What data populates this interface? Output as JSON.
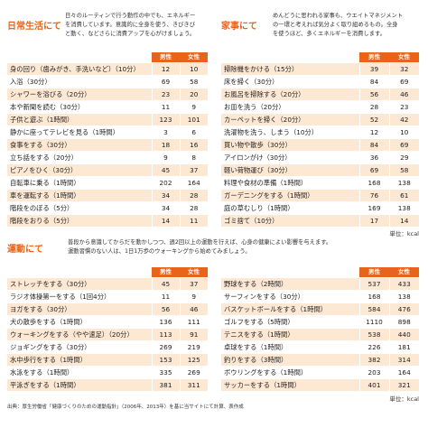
{
  "daily": {
    "title": "日常生活にて",
    "desc": [
      "日々のルーティンで行う動作の中でも、エネルギー",
      "を消費しています。意識的に全身を使う、きびきび",
      "と動く、などさらに消費アップを心がけましょう。"
    ],
    "headers": [
      "男性",
      "女性"
    ],
    "rows": [
      {
        "a": "身の回り（歯みがき、手洗いなど）（10分）",
        "m": "12",
        "f": "10"
      },
      {
        "a": "入浴（30分）",
        "m": "69",
        "f": "58"
      },
      {
        "a": "シャワーを浴びる（20分）",
        "m": "23",
        "f": "20"
      },
      {
        "a": "本や新聞を読む（30分）",
        "m": "11",
        "f": "9"
      },
      {
        "a": "子供と遊ぶ（1時間）",
        "m": "123",
        "f": "101"
      },
      {
        "a": "静かに座ってテレビを見る（1時間）",
        "m": "3",
        "f": "6"
      },
      {
        "a": "食事をする（30分）",
        "m": "18",
        "f": "16"
      },
      {
        "a": "立ち話をする（20分）",
        "m": "9",
        "f": "8"
      },
      {
        "a": "ピアノをひく（30分）",
        "m": "45",
        "f": "37"
      },
      {
        "a": "自転車に乗る（1時間）",
        "m": "202",
        "f": "164"
      },
      {
        "a": "車を運転する（1時間）",
        "m": "34",
        "f": "28"
      },
      {
        "a": "階段をのぼる（5分）",
        "m": "34",
        "f": "28"
      },
      {
        "a": "階段をおりる（5分）",
        "m": "14",
        "f": "11"
      }
    ]
  },
  "housework": {
    "title": "家事にて",
    "desc": [
      "めんどうに思われる家事も、ウエイトマネジメント",
      "の一環と考えれば気分よく取り組めるもの。全身",
      "を使うほど、多くエネルギーを消費します。"
    ],
    "headers": [
      "男性",
      "女性"
    ],
    "rows": [
      {
        "a": "掃除機をかける（15分）",
        "m": "39",
        "f": "32"
      },
      {
        "a": "床を掃く（30分）",
        "m": "84",
        "f": "69"
      },
      {
        "a": "お風呂を掃除する（20分）",
        "m": "56",
        "f": "46"
      },
      {
        "a": "お皿を洗う（20分）",
        "m": "28",
        "f": "23"
      },
      {
        "a": "カーペットを掃く（20分）",
        "m": "52",
        "f": "42"
      },
      {
        "a": "洗濯物を洗う、しまう（10分）",
        "m": "12",
        "f": "10"
      },
      {
        "a": "買い物や散歩（30分）",
        "m": "84",
        "f": "69"
      },
      {
        "a": "アイロンがけ（30分）",
        "m": "36",
        "f": "29"
      },
      {
        "a": "軽い荷物運び（30分）",
        "m": "69",
        "f": "58"
      },
      {
        "a": "料理や食材の準備（1時間）",
        "m": "168",
        "f": "138"
      },
      {
        "a": "ガーデニングをする（1時間）",
        "m": "76",
        "f": "61"
      },
      {
        "a": "庭の草むしり（1時間）",
        "m": "169",
        "f": "138"
      },
      {
        "a": "ゴミ捨て（10分）",
        "m": "17",
        "f": "14"
      }
    ]
  },
  "unit_top": "単位：kcal",
  "exercise": {
    "title": "運動にて",
    "desc": [
      "普段から意識してからだを動かしつつ、週2回以上の運動を行えば、心身の健康によい影響を与えます。",
      "運動習慣のない人は、1日1万歩のウォーキングから始めてみましょう。"
    ],
    "headers": [
      "男性",
      "女性"
    ],
    "left_rows": [
      {
        "a": "ストレッチをする（30分）",
        "m": "45",
        "f": "37"
      },
      {
        "a": "ラジオ体操第一をする（1回4分）",
        "m": "11",
        "f": "9"
      },
      {
        "a": "ヨガをする（30分）",
        "m": "56",
        "f": "46"
      },
      {
        "a": "犬の散歩をする（1時間）",
        "m": "136",
        "f": "111"
      },
      {
        "a": "ウォーキングをする（やや速足）（20分）",
        "m": "113",
        "f": "91"
      },
      {
        "a": "ジョギングをする（30分）",
        "m": "269",
        "f": "219"
      },
      {
        "a": "水中歩行をする（1時間）",
        "m": "153",
        "f": "125"
      },
      {
        "a": "水泳をする（1時間）",
        "m": "335",
        "f": "269"
      },
      {
        "a": "平泳ぎをする（1時間）",
        "m": "381",
        "f": "311"
      }
    ],
    "right_rows": [
      {
        "a": "野球をする（2時間）",
        "m": "537",
        "f": "433"
      },
      {
        "a": "サーフィンをする（30分）",
        "m": "168",
        "f": "138"
      },
      {
        "a": "バスケットボールをする（1時間）",
        "m": "584",
        "f": "476"
      },
      {
        "a": "ゴルフをする（5時間）",
        "m": "1110",
        "f": "898"
      },
      {
        "a": "テニスをする（1時間）",
        "m": "538",
        "f": "440"
      },
      {
        "a": "卓球をする（1時間）",
        "m": "226",
        "f": "181"
      },
      {
        "a": "釣りをする（3時間）",
        "m": "382",
        "f": "314"
      },
      {
        "a": "ボウリングをする（1時間）",
        "m": "203",
        "f": "164"
      },
      {
        "a": "サッカーをする（1時間）",
        "m": "401",
        "f": "321"
      }
    ]
  },
  "unit_bottom": "単位：kcal",
  "source": "出典：厚生労働省「健康づくりのための運動指針」（2006年、2013年）を基に当サイトにて計算、表作成"
}
